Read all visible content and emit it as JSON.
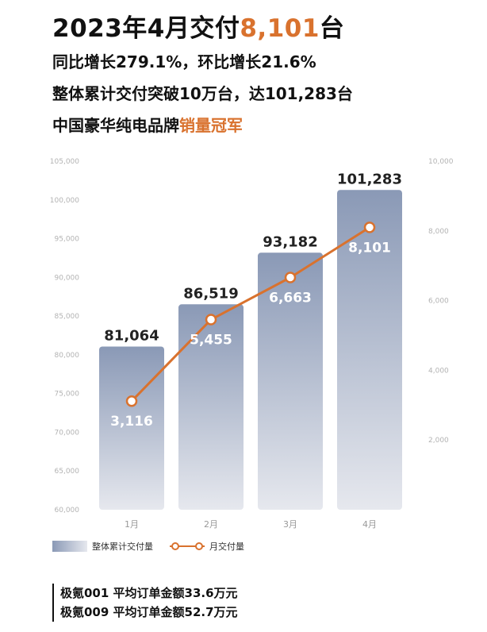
{
  "headline": {
    "prefix": "2023年4月交付",
    "number": "8,101",
    "suffix": "台"
  },
  "line1": "同比增长279.1%，环比增长21.6%",
  "line2": "整体累计交付突破10万台，达101,283台",
  "line3": {
    "prefix": "中国豪华纯电品牌",
    "highlight": "销量冠军"
  },
  "colors": {
    "accent": "#d9722e",
    "bar_top": "#8a99b6",
    "bar_bottom": "#e6e8ee"
  },
  "chart_data": {
    "type": "bar",
    "categories": [
      "1月",
      "2月",
      "3月",
      "4月"
    ],
    "series": [
      {
        "name": "整体累计交付量",
        "type": "bar",
        "axis": "left",
        "values": [
          81064,
          86519,
          93182,
          101283
        ],
        "labels": [
          "81,064",
          "86,519",
          "93,182",
          "101,283"
        ]
      },
      {
        "name": "月交付量",
        "type": "line",
        "axis": "right",
        "values": [
          3116,
          5455,
          6663,
          8101
        ],
        "labels": [
          "3,116",
          "5,455",
          "6,663",
          "8,101"
        ]
      }
    ],
    "y_left": {
      "lim": [
        60000,
        105000
      ],
      "ticks": [
        60000,
        65000,
        70000,
        75000,
        80000,
        85000,
        90000,
        95000,
        100000,
        105000
      ],
      "tick_labels": [
        "60,000",
        "65,000",
        "70,000",
        "75,000",
        "80,000",
        "85,000",
        "90,000",
        "95,000",
        "100,000",
        "105,000"
      ]
    },
    "y_right": {
      "lim": [
        0,
        10000
      ],
      "ticks": [
        2000,
        4000,
        6000,
        8000,
        10000
      ],
      "tick_labels": [
        "2,000",
        "4,000",
        "6,000",
        "8,000",
        "10,000"
      ]
    },
    "grid": false,
    "legend": "bottom-left"
  },
  "notes": [
    "极氪001 平均订单金额33.6万元",
    "极氪009 平均订单金额52.7万元"
  ]
}
